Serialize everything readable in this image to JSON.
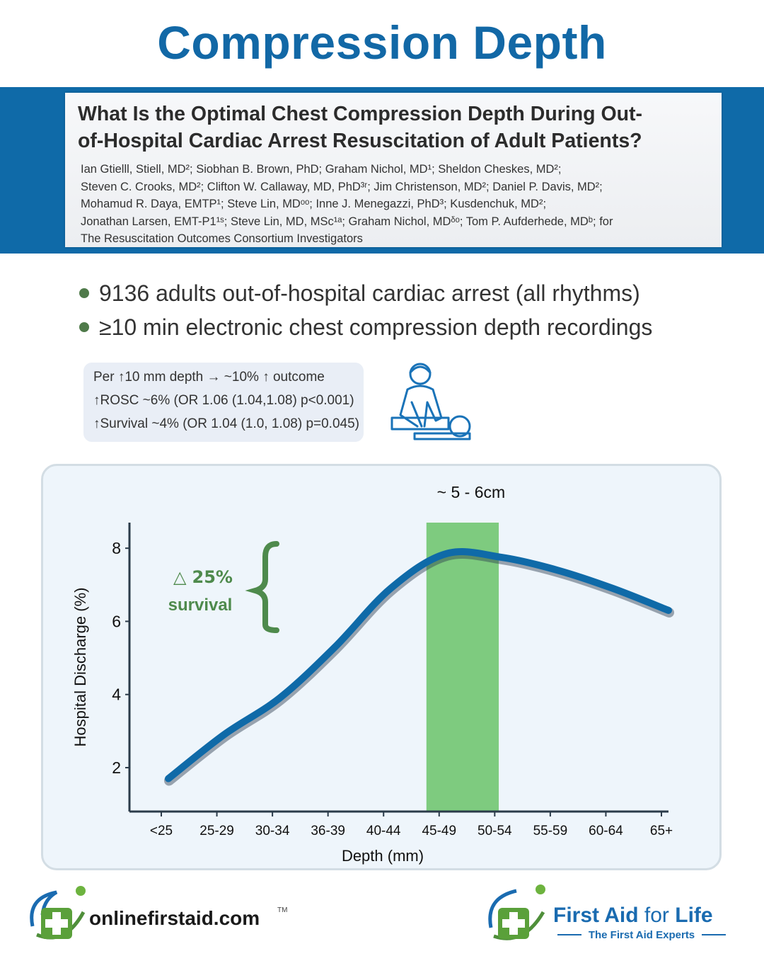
{
  "page": {
    "title": "Compression Depth"
  },
  "paper": {
    "title_lines": [
      "What Is the Optimal Chest Compression Depth During Out-",
      "of-Hospital Cardiac Arrest Resuscitation of Adult Patients?"
    ],
    "author_lines": [
      "Ian Gtielll, Stiell, MD²; Siobhan B. Brown, PhD; Graham Nichol, MD¹; Sheldon Cheskes, MD²;",
      "Steven C. Crooks, MD²; Clifton W. Callaway, MD, PhD³ʳ; Jim Christenson, MD²; Daniel P. Davis, MD²;",
      "Mohamud R. Daya, EMTP¹; Steve Lin, MDᵒᵒ; Inne J. Menegazzi, PhD³; Kusdenchuk, MD²;",
      "Jonathan Larsen, EMT-P1¹ˢ; Steve Lin, MD, MSc¹ᵃ; Graham Nichol, MDᵟᵒ; Tom P. Aufderhede, MDᵇ; for",
      "The Resuscitation Outcomes Consortium Investigators"
    ]
  },
  "bullets": [
    "9136 adults out-of-hospital cardiac arrest (all rhythms)",
    "≥10 min electronic chest compression depth recordings"
  ],
  "stats": [
    "Per ↑10 mm depth → ~10% ↑ outcome",
    "↑ROSC   ~6% (OR 1.06 (1.04,1.08) p<0.001)",
    "↑Survival ~4% (OR 1.04 (1.0, 1.08) p=0.045)"
  ],
  "icons": {
    "cpr": "cpr-rescuer-icon",
    "logo_left": "onlinefirstaid-logo",
    "logo_right": "first-aid-for-life-logo"
  },
  "colors": {
    "title_blue": "#1268a6",
    "band_blue": "#0f6aa8",
    "curve_blue": "#0f6aa8",
    "highlight_green": "#7ecb7f",
    "annotation_green": "#4e8a4c"
  },
  "chart_data": {
    "type": "line",
    "xlabel": "Depth (mm)",
    "ylabel": "Hospital Discharge (%)",
    "categories": [
      "<25",
      "25-29",
      "30-34",
      "36-39",
      "40-44",
      "45-49",
      "50-54",
      "55-59",
      "60-64",
      "65+"
    ],
    "values": [
      1.7,
      2.9,
      3.9,
      5.3,
      6.9,
      7.85,
      7.75,
      7.4,
      6.9,
      6.3
    ],
    "y_ticks": [
      2,
      4,
      6,
      8
    ],
    "ylim": [
      0.8,
      8.7
    ],
    "highlight": {
      "label": "~ 5 - 6cm",
      "from_index": 5.0,
      "to_index": 6.2
    },
    "annotation": {
      "symbol": "△",
      "line1": "25%",
      "line2": "survival"
    },
    "grid": false,
    "legend": "none"
  },
  "logos": {
    "left_text": "onlinefirstaid.com",
    "left_tm": "TM",
    "right_main_1": "First Aid ",
    "right_main_2": "for ",
    "right_main_3": "Life",
    "right_tagline": "The First Aid Experts"
  }
}
